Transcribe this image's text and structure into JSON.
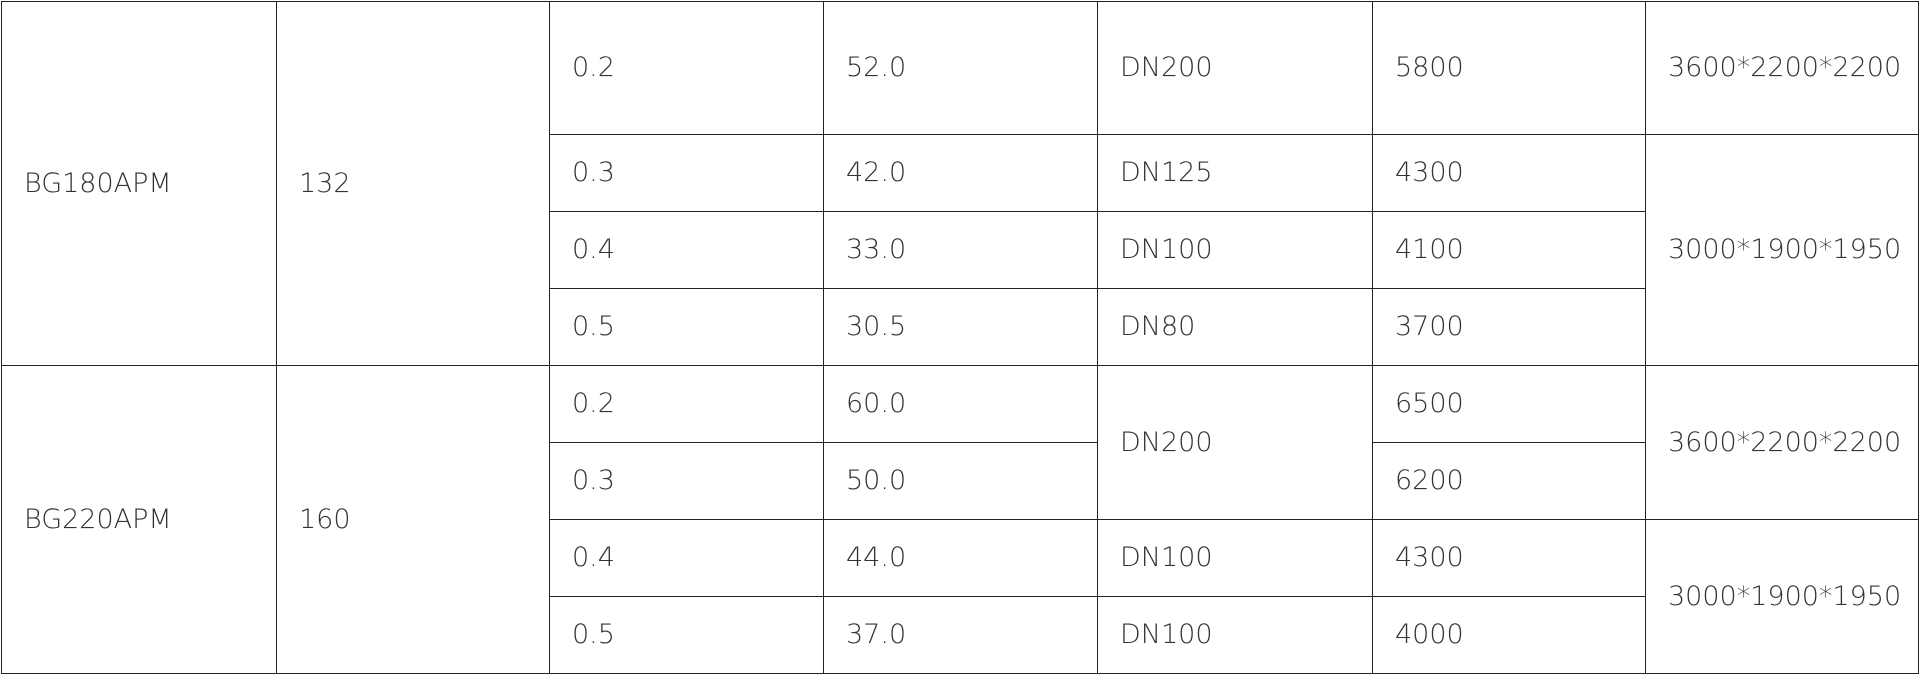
{
  "table": {
    "rows": [
      [
        "BG180APM",
        "132",
        "0.2",
        "52.0",
        "DN200",
        "5800",
        "3600*2200*2200"
      ],
      [
        "0.3",
        "42.0",
        "DN125",
        "4300",
        "3000*1900*1950"
      ],
      [
        "0.4",
        "33.0",
        "DN100",
        "4100"
      ],
      [
        "0.5",
        "30.5",
        "DN80",
        "3700"
      ],
      [
        "BG220APM",
        "160",
        "0.2",
        "60.0",
        "DN200",
        "6500",
        "3600*2200*2200"
      ],
      [
        "0.3",
        "50.0",
        "6200"
      ],
      [
        "0.4",
        "44.0",
        "DN100",
        "4300",
        "3000*1900*1950"
      ],
      [
        "0.5",
        "37.0",
        "DN100",
        "4000"
      ]
    ]
  }
}
